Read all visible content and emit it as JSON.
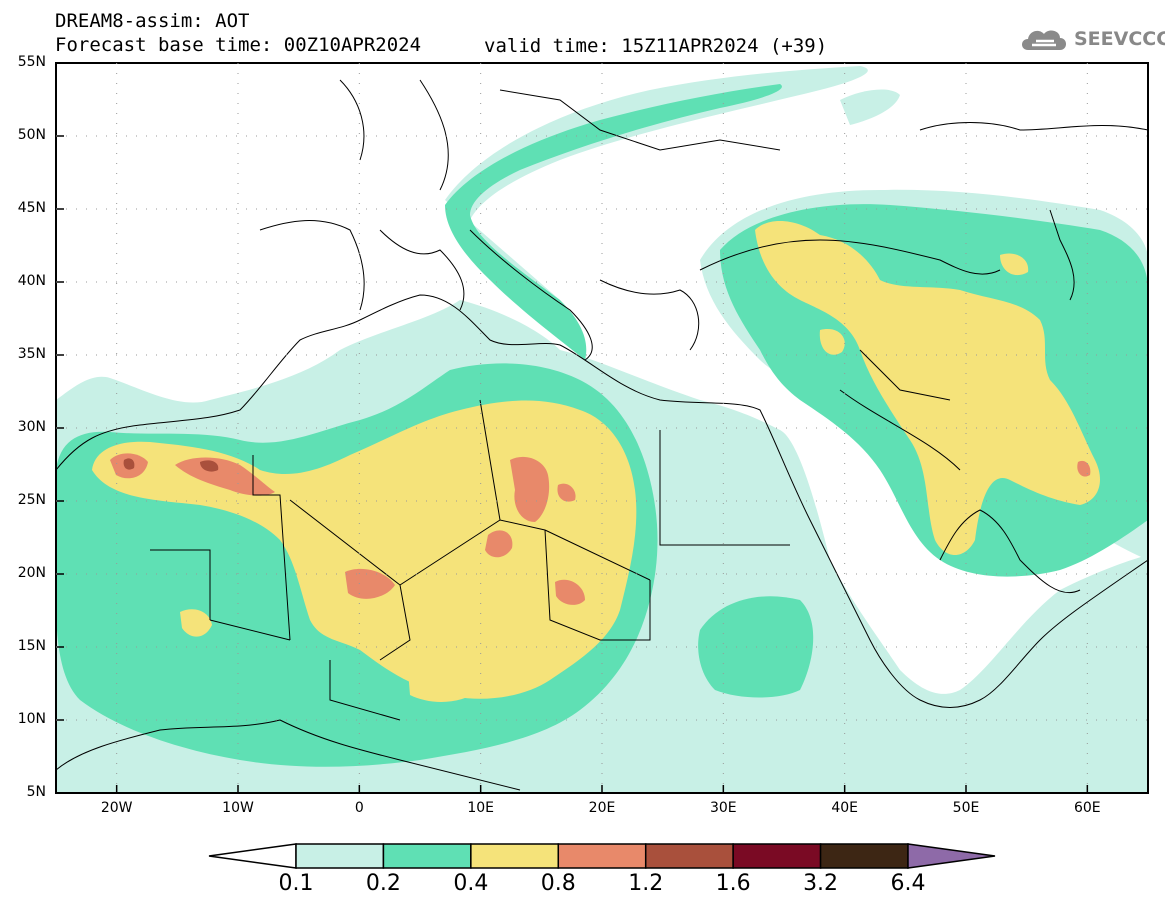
{
  "header": {
    "title": "DREAM8-assim: AOT",
    "base_time": "Forecast base time: 00Z10APR2024",
    "valid_time": "valid time: 15Z11APR2024 (+39)",
    "logo_text": "SEEVCCC"
  },
  "map": {
    "lat_labels": [
      "55N",
      "50N",
      "45N",
      "40N",
      "35N",
      "30N",
      "25N",
      "20N",
      "15N",
      "10N",
      "5N"
    ],
    "lon_labels": [
      "20W",
      "10W",
      "0",
      "10E",
      "20E",
      "30E",
      "40E",
      "50E",
      "60E"
    ]
  },
  "colorbar": {
    "labels": [
      "0.1",
      "0.2",
      "0.4",
      "0.8",
      "1.2",
      "1.6",
      "3.2",
      "6.4"
    ],
    "colors": [
      "#c8f0e6",
      "#5fe0b4",
      "#f5e37a",
      "#e8896a",
      "#a9503c",
      "#7a0a24",
      "#3d2614",
      "#8e6aa8"
    ]
  }
}
